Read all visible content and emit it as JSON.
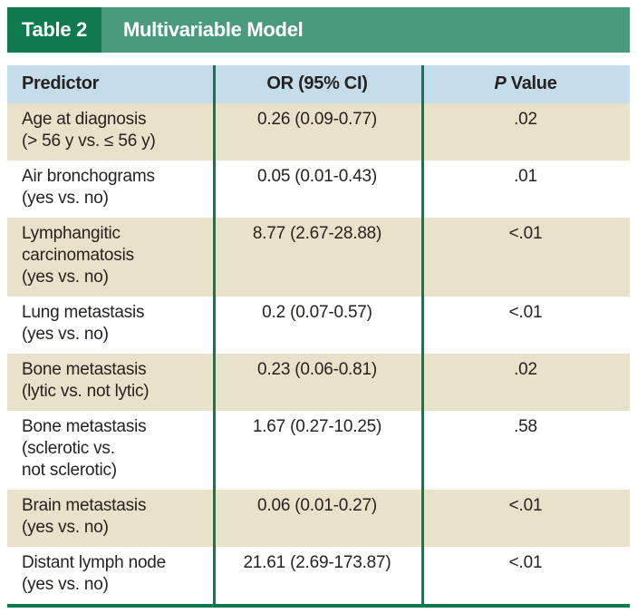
{
  "title_bar": {
    "tag": "Table 2",
    "title": "Multivariable Model"
  },
  "columns": {
    "predictor": "Predictor",
    "or_ci": "OR (95% CI)",
    "p_italic": "P",
    "p_rest": " Value"
  },
  "rows": [
    {
      "predictor_lines": [
        "Age at diagnosis",
        "(> 56 y vs. ≤ 56 y)"
      ],
      "or_ci": "0.26 (0.09-0.77)",
      "p_value": ".02"
    },
    {
      "predictor_lines": [
        "Air bronchograms",
        "(yes vs. no)"
      ],
      "or_ci": "0.05 (0.01-0.43)",
      "p_value": ".01"
    },
    {
      "predictor_lines": [
        "Lymphangitic",
        "carcinomatosis",
        "(yes vs. no)"
      ],
      "or_ci": "8.77 (2.67-28.88)",
      "p_value": "<.01"
    },
    {
      "predictor_lines": [
        "Lung metastasis",
        "(yes vs. no)"
      ],
      "or_ci": "0.2 (0.07-0.57)",
      "p_value": "<.01"
    },
    {
      "predictor_lines": [
        "Bone metastasis",
        "(lytic vs. not lytic)"
      ],
      "or_ci": "0.23 (0.06-0.81)",
      "p_value": ".02"
    },
    {
      "predictor_lines": [
        "Bone metastasis",
        "(sclerotic vs.",
        "not sclerotic)"
      ],
      "or_ci": "1.67 (0.27-10.25)",
      "p_value": ".58"
    },
    {
      "predictor_lines": [
        "Brain metastasis",
        "(yes vs. no)"
      ],
      "or_ci": "0.06 (0.01-0.27)",
      "p_value": "<.01"
    },
    {
      "predictor_lines": [
        "Distant lymph node",
        "(yes vs. no)"
      ],
      "or_ci": "21.61 (2.69-173.87)",
      "p_value": "<.01"
    }
  ],
  "colors": {
    "dark_green": "#0e7a4e",
    "light_green": "#4a9a7e",
    "header_blue": "#c5ddeb",
    "row_tan": "#eae1ca",
    "row_white": "#ffffff",
    "text": "#26221f"
  }
}
